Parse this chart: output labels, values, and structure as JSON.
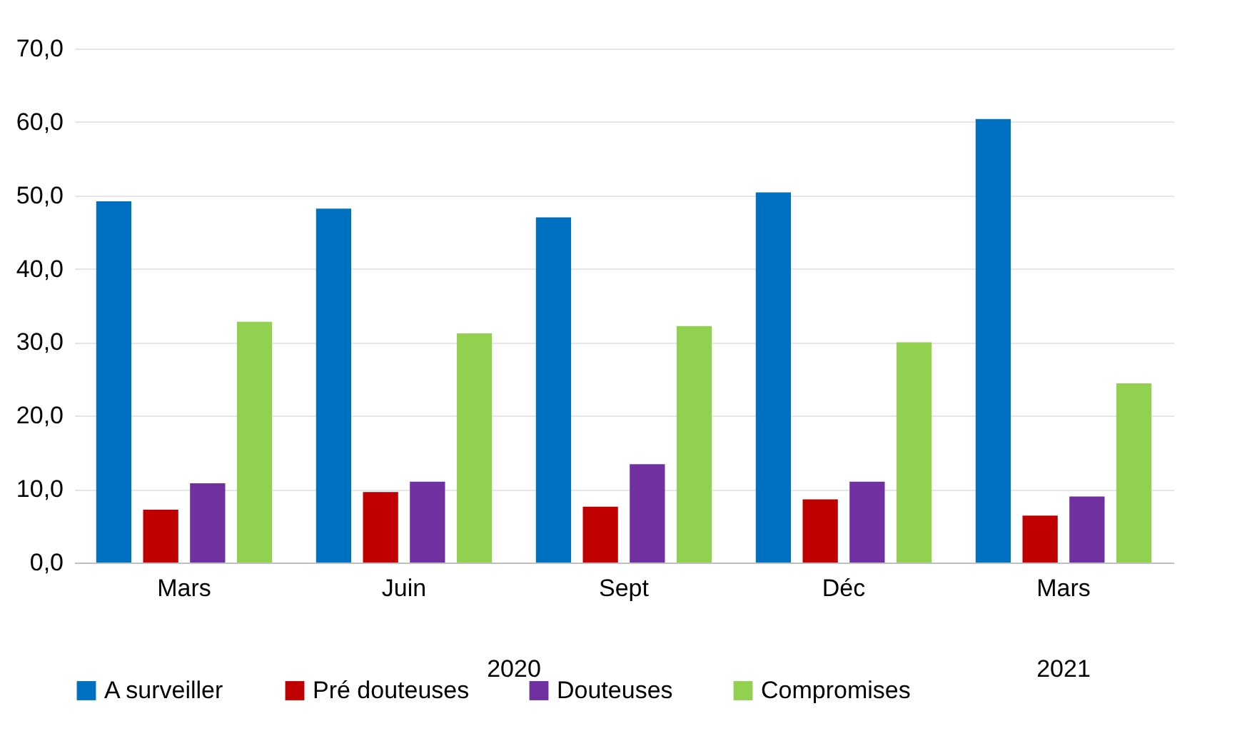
{
  "chart_data": {
    "type": "bar",
    "categories": [
      "Mars",
      "Juin",
      "Sept",
      "Déc",
      "Mars"
    ],
    "series": [
      {
        "name": "A surveiller",
        "color": "#0070c0",
        "values": [
          49.2,
          48.2,
          47.0,
          50.4,
          60.4
        ]
      },
      {
        "name": "Pré douteuses",
        "color": "#c00000",
        "values": [
          7.2,
          9.6,
          7.6,
          8.6,
          6.4
        ]
      },
      {
        "name": "Douteuses",
        "color": "#7030a0",
        "values": [
          10.8,
          11.0,
          13.4,
          11.0,
          9.0
        ]
      },
      {
        "name": "Compromises",
        "color": "#92d050",
        "values": [
          32.8,
          31.2,
          32.2,
          30.0,
          24.4
        ]
      }
    ],
    "annotations": [
      "2020",
      "2021"
    ],
    "ylim": [
      0,
      70
    ],
    "yticks": [
      {
        "value": 0,
        "label": "0,0"
      },
      {
        "value": 10,
        "label": "10,0"
      },
      {
        "value": 20,
        "label": "20,0"
      },
      {
        "value": 30,
        "label": "30,0"
      },
      {
        "value": 40,
        "label": "40,0"
      },
      {
        "value": 50,
        "label": "50,0"
      },
      {
        "value": 60,
        "label": "60,0"
      },
      {
        "value": 70,
        "label": "70,0"
      }
    ],
    "grid": "y",
    "legend": "bottom"
  }
}
